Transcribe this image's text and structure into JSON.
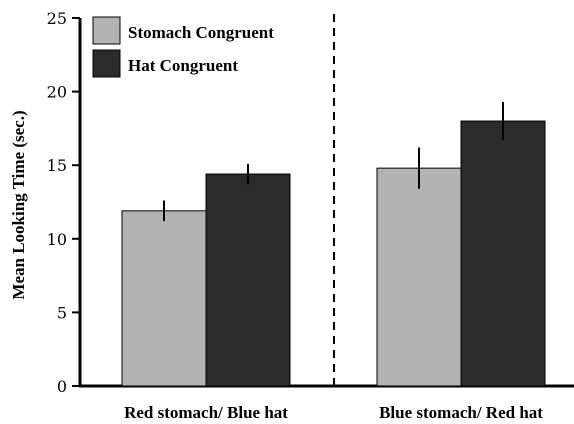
{
  "chart_data": {
    "type": "bar",
    "categories": [
      "Red stomach/ Blue hat",
      "Blue stomach/ Red hat"
    ],
    "series": [
      {
        "name": "Stomach Congruent",
        "values": [
          11.9,
          14.8
        ],
        "errors": [
          0.7,
          1.4
        ],
        "color": "#b3b3b3"
      },
      {
        "name": "Hat Congruent",
        "values": [
          14.4,
          18.0
        ],
        "errors": [
          0.7,
          1.3
        ],
        "color": "#2b2b2b"
      }
    ],
    "ylabel": "Mean Looking Time (sec.)",
    "ylim": [
      0,
      25
    ],
    "yticks": [
      0,
      5,
      10,
      15,
      20,
      25
    ],
    "ytick_labels": [
      "0",
      "5",
      "10",
      "15",
      "20",
      "25"
    ],
    "divider": "dashed vertical line between categories",
    "legend_position": "top-left",
    "grid": false
  }
}
